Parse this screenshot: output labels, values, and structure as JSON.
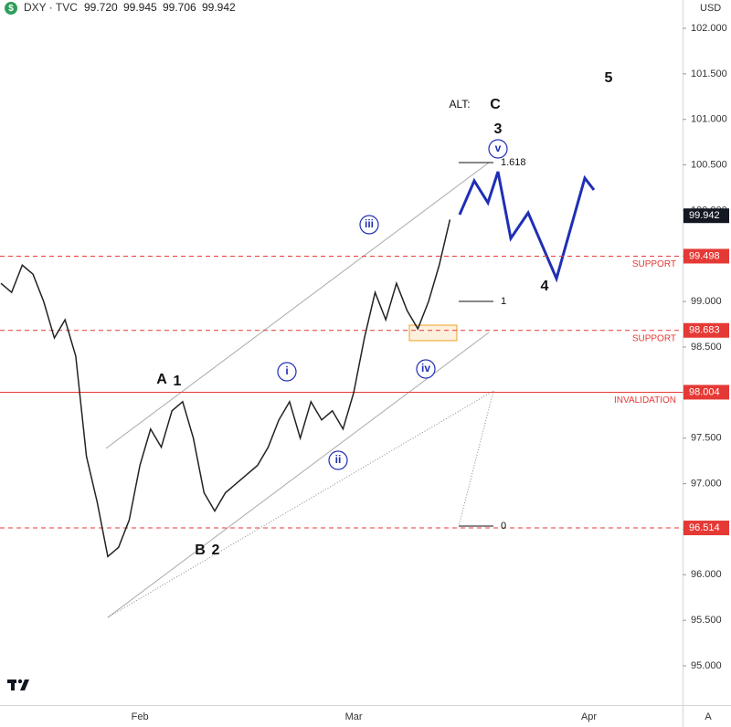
{
  "chart_data": {
    "type": "line",
    "title": "DXY · TVC",
    "ohlc": [
      {
        "value": 99.72,
        "label": "99.720"
      },
      {
        "value": 99.945,
        "label": "99.945"
      },
      {
        "value": 99.706,
        "label": "99.706"
      },
      {
        "value": 99.942,
        "label": "99.942"
      }
    ],
    "currency": "USD",
    "scale_mode": "A",
    "categories": [
      null,
      null,
      null,
      null,
      null,
      null,
      null,
      null,
      null,
      null,
      null,
      null,
      null,
      "Feb",
      null,
      null,
      null,
      null,
      null,
      null,
      null,
      null,
      null,
      null,
      null,
      null,
      null,
      null,
      null,
      null,
      null,
      null,
      null,
      "Mar",
      null,
      null,
      null,
      null,
      null,
      null,
      null,
      null,
      null,
      null,
      null,
      null,
      null,
      null,
      null,
      null,
      null,
      null,
      null,
      null,
      null,
      "Apr",
      null,
      null,
      null,
      null,
      null,
      null,
      null,
      null
    ],
    "series": [
      {
        "color": "#222222",
        "values": [
          99.2,
          99.1,
          99.4,
          99.3,
          99.0,
          98.6,
          98.8,
          98.4,
          97.3,
          96.8,
          96.2,
          96.3,
          96.6,
          97.2,
          97.6,
          97.4,
          97.8,
          97.9,
          97.5,
          96.9,
          96.7,
          96.9,
          97.0,
          97.1,
          97.2,
          97.4,
          97.7,
          97.9,
          97.5,
          97.9,
          97.7,
          97.8,
          97.6,
          98.0,
          98.6,
          99.1,
          98.8,
          99.2,
          98.9,
          98.7,
          99.0,
          99.4,
          99.9,
          null,
          null,
          null,
          null,
          null,
          null,
          null,
          null,
          null,
          null,
          null,
          null,
          null,
          null,
          null,
          null,
          null,
          null,
          null,
          null,
          null
        ]
      }
    ],
    "last_price": 99.942,
    "ylim": [
      95.0,
      102.0
    ],
    "yticks": [
      {
        "value": 95,
        "label": "95.000"
      },
      {
        "value": 95.5,
        "label": "95.500"
      },
      {
        "value": 96,
        "label": "96.000"
      },
      {
        "value": 96.5,
        "label": "96.500"
      },
      {
        "value": 97,
        "label": "97.000"
      },
      {
        "value": 97.5,
        "label": "97.500"
      },
      {
        "value": 98,
        "label": "98.000"
      },
      {
        "value": 98.5,
        "label": "98.500"
      },
      {
        "value": 99,
        "label": "99.000"
      },
      {
        "value": 99.5,
        "label": "99.500"
      },
      {
        "value": 100,
        "label": "100.000"
      },
      {
        "value": 100.5,
        "label": "100.500"
      },
      {
        "value": 101,
        "label": "101.000"
      },
      {
        "value": 101.5,
        "label": "101.500"
      },
      {
        "value": 102,
        "label": "102.000"
      }
    ],
    "levels": [
      {
        "value": 99.498,
        "text": "SUPPORT",
        "dashed": true
      },
      {
        "value": 98.683,
        "text": "SUPPORT",
        "dashed": true
      },
      {
        "value": 98.004,
        "text": "INVALIDATION",
        "dashed": false
      },
      {
        "value": 96.514,
        "dashed": true
      }
    ],
    "wave_labels": [
      "A",
      "1",
      "B",
      "2",
      "3",
      "4",
      "5",
      "ALT:",
      "C"
    ],
    "circled_labels": [
      "i",
      "ii",
      "iii",
      "iv",
      "v"
    ],
    "fib": [
      1.618,
      1,
      0
    ]
  }
}
